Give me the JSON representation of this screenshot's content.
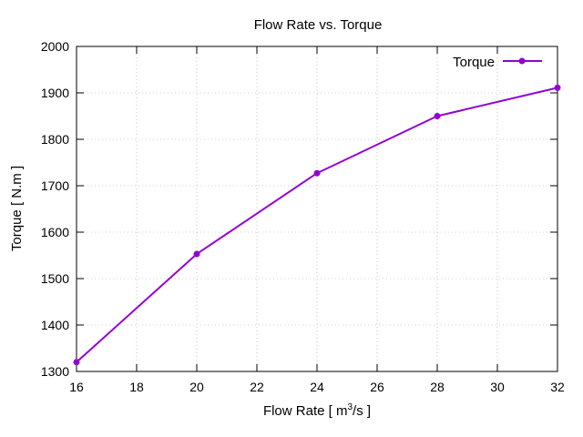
{
  "chart_data": {
    "type": "line",
    "title": "Flow Rate vs. Torque",
    "xlabel_main": "Flow Rate [ m",
    "xlabel_sup": "3",
    "xlabel_tail": "/s ]",
    "ylabel": "Torque [ N.m ]",
    "xlim": [
      16,
      32
    ],
    "ylim": [
      1300,
      2000
    ],
    "xticks": [
      16,
      18,
      20,
      22,
      24,
      26,
      28,
      30,
      32
    ],
    "yticks": [
      1300,
      1400,
      1500,
      1600,
      1700,
      1800,
      1900,
      2000
    ],
    "grid": true,
    "legend_position": "top-right",
    "series": [
      {
        "name": "Torque",
        "color": "#9400D3",
        "x": [
          16,
          20,
          24,
          28,
          32
        ],
        "y": [
          1320,
          1553,
          1727,
          1850,
          1911
        ]
      }
    ]
  }
}
